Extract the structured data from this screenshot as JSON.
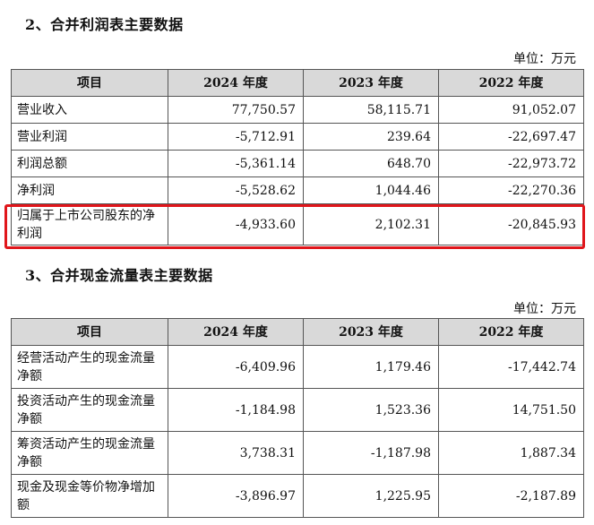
{
  "income": {
    "title": "2、合并利润表主要数据",
    "unit": "单位：万元",
    "headers": [
      "项目",
      "2024 年度",
      "2023 年度",
      "2022 年度"
    ],
    "rows": [
      {
        "label": "营业收入",
        "v2024": "77,750.57",
        "v2023": "58,115.71",
        "v2022": "91,052.07"
      },
      {
        "label": "营业利润",
        "v2024": "-5,712.91",
        "v2023": "239.64",
        "v2022": "-22,697.47"
      },
      {
        "label": "利润总额",
        "v2024": "-5,361.14",
        "v2023": "648.70",
        "v2022": "-22,973.72"
      },
      {
        "label": "净利润",
        "v2024": "-5,528.62",
        "v2023": "1,044.46",
        "v2022": "-22,270.36"
      },
      {
        "label": "归属于上市公司股东的净利润",
        "v2024": "-4,933.60",
        "v2023": "2,102.31",
        "v2022": "-20,845.93"
      }
    ]
  },
  "cashflow": {
    "title": "3、合并现金流量表主要数据",
    "unit": "单位：万元",
    "headers": [
      "项目",
      "2024 年度",
      "2023 年度",
      "2022 年度"
    ],
    "rows": [
      {
        "label": "经营活动产生的现金流量净额",
        "v2024": "-6,409.96",
        "v2023": "1,179.46",
        "v2022": "-17,442.74"
      },
      {
        "label": "投资活动产生的现金流量净额",
        "v2024": "-1,184.98",
        "v2023": "1,523.36",
        "v2022": "14,751.50"
      },
      {
        "label": "筹资活动产生的现金流量净额",
        "v2024": "3,738.31",
        "v2023": "-1,187.98",
        "v2022": "1,887.34"
      },
      {
        "label": "现金及现金等价物净增加额",
        "v2024": "-3,896.97",
        "v2023": "1,225.95",
        "v2022": "-2,187.89"
      }
    ]
  },
  "colors": {
    "highlight": "#e0161b",
    "header_bg": "#d9d9d9"
  }
}
